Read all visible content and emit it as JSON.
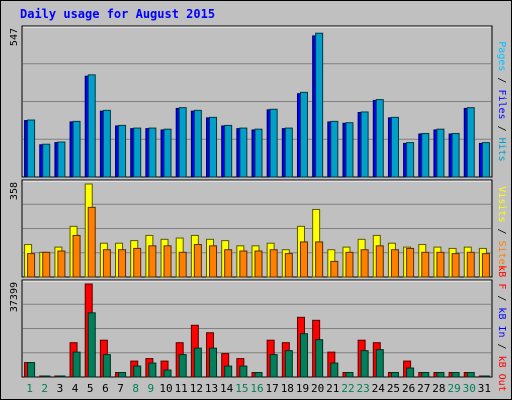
{
  "chart_data": {
    "type": "bar",
    "title": "Daily usage for August 2015",
    "categories": [
      "1",
      "2",
      "3",
      "4",
      "5",
      "6",
      "7",
      "8",
      "9",
      "10",
      "11",
      "12",
      "13",
      "14",
      "15",
      "16",
      "17",
      "18",
      "19",
      "20",
      "21",
      "22",
      "23",
      "24",
      "25",
      "26",
      "27",
      "28",
      "29",
      "30",
      "31"
    ],
    "weekend_days": [
      "1",
      "2",
      "8",
      "9",
      "15",
      "16",
      "22",
      "23",
      "29",
      "30"
    ],
    "panels": [
      {
        "max_label": "547",
        "ylim": [
          0,
          547
        ],
        "series": [
          {
            "name": "Pages",
            "color": "#00c0ff",
            "values": [
              0,
              0,
              0,
              0,
              0,
              0,
              0,
              0,
              0,
              0,
              0,
              0,
              0,
              0,
              0,
              0,
              0,
              0,
              0,
              0,
              0,
              0,
              0,
              0,
              0,
              0,
              0,
              0,
              0,
              0,
              0
            ]
          },
          {
            "name": "Files",
            "color": "#0000ff",
            "values": [
              210,
              120,
              128,
              205,
              375,
              245,
              190,
              180,
              180,
              175,
              255,
              245,
              220,
              190,
              180,
              175,
              250,
              180,
              310,
              525,
              205,
              200,
              240,
              285,
              220,
              125,
              160,
              175,
              160,
              255,
              125
            ]
          },
          {
            "name": "Hits",
            "color": "#00a0c8",
            "values": [
              212,
              122,
              130,
              207,
              380,
              248,
              192,
              182,
              182,
              178,
              258,
              248,
              222,
              192,
              182,
              178,
              252,
              182,
              315,
              535,
              207,
              202,
              242,
              288,
              222,
              128,
              162,
              178,
              162,
              258,
              128
            ]
          }
        ],
        "axis_label_series": [
          "Pages",
          "Files",
          "Hits"
        ]
      },
      {
        "max_label": "358",
        "ylim": [
          0,
          358
        ],
        "series": [
          {
            "name": "Visits",
            "color": "#ffff00",
            "values": [
              125,
              95,
              115,
              195,
              358,
              130,
              130,
              140,
              160,
              145,
              150,
              160,
              145,
              140,
              120,
              120,
              130,
              105,
              195,
              260,
              105,
              115,
              145,
              160,
              130,
              115,
              125,
              115,
              110,
              115,
              110
            ]
          },
          {
            "name": "Sites",
            "color": "#ff8000",
            "values": [
              90,
              95,
              100,
              160,
              268,
              105,
              105,
              110,
              120,
              120,
              95,
              125,
              120,
              105,
              100,
              100,
              105,
              90,
              135,
              135,
              60,
              95,
              105,
              120,
              105,
              110,
              95,
              95,
              90,
              95,
              90
            ]
          }
        ],
        "axis_label_series": [
          "Visits",
          "Sites"
        ]
      },
      {
        "max_label": "37399",
        "ylim": [
          0,
          37399
        ],
        "series": [
          {
            "name": "kB F",
            "color": "#ff0000",
            "values": [
              0,
              0,
              0,
              0,
              0,
              0,
              0,
              0,
              0,
              0,
              0,
              0,
              0,
              0,
              0,
              0,
              0,
              0,
              0,
              0,
              0,
              0,
              0,
              0,
              0,
              0,
              0,
              0,
              0,
              0,
              0
            ]
          },
          {
            "name": "kB In",
            "color": "#0000ff",
            "values": [
              0,
              0,
              0,
              0,
              0,
              0,
              0,
              0,
              0,
              0,
              0,
              0,
              0,
              0,
              0,
              0,
              0,
              0,
              0,
              0,
              0,
              0,
              0,
              0,
              0,
              0,
              0,
              0,
              0,
              0,
              0
            ]
          },
          {
            "name": "kB Out",
            "color": "#ff0000",
            "values": [
              5800,
              400,
              400,
              13800,
              37399,
              14800,
              1800,
              6400,
              7400,
              6400,
              13800,
              20800,
              17800,
              9400,
              7400,
              1800,
              14800,
              13800,
              24000,
              22800,
              10000,
              1800,
              14800,
              13800,
              1800,
              6400,
              1800,
              1800,
              1800,
              1800,
              400
            ]
          },
          {
            "name": "kB Out",
            "color": "#00805a",
            "values": [
              5800,
              400,
              400,
              10000,
              25800,
              9000,
              1800,
              4400,
              5600,
              2800,
              9000,
              11600,
              11600,
              4400,
              4400,
              1800,
              9000,
              10600,
              17400,
              15000,
              5600,
              1800,
              10600,
              11000,
              1800,
              3600,
              1800,
              1800,
              1800,
              1800,
              400
            ]
          }
        ],
        "axis_label_series": [
          "kB F",
          "kB In",
          "kB Out"
        ]
      }
    ]
  }
}
